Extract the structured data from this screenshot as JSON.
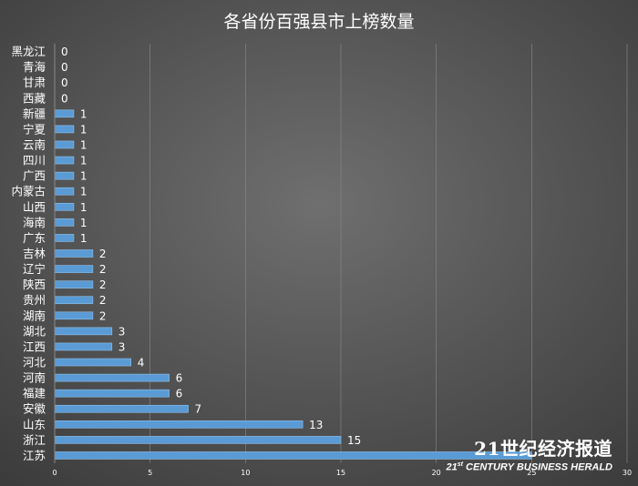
{
  "colors": {
    "background_center": "#6f6f6f",
    "background_edge": "#3c3c3c",
    "bar": "#5b9bd5",
    "bar_edge": "#8fc0ea",
    "text": "#ffffff",
    "grid": "#8a8a8a"
  },
  "watermark": {
    "line1": "21世纪经济报道",
    "line2_prefix": "21",
    "line2_sup": "st",
    "line2_rest": " CENTURY BUSINESS HERALD"
  },
  "chart_data": {
    "type": "bar",
    "orientation": "horizontal",
    "title": "各省份百强县市上榜数量",
    "categories": [
      "黑龙江",
      "青海",
      "甘肃",
      "西藏",
      "新疆",
      "宁夏",
      "云南",
      "四川",
      "广西",
      "内蒙古",
      "山西",
      "海南",
      "广东",
      "吉林",
      "辽宁",
      "陕西",
      "贵州",
      "湖南",
      "湖北",
      "江西",
      "河北",
      "河南",
      "福建",
      "安徽",
      "山东",
      "浙江",
      "江苏"
    ],
    "values": [
      0,
      0,
      0,
      0,
      1,
      1,
      1,
      1,
      1,
      1,
      1,
      1,
      1,
      2,
      2,
      2,
      2,
      2,
      3,
      3,
      4,
      6,
      6,
      7,
      13,
      15,
      25
    ],
    "data_labels": [
      "0",
      "0",
      "0",
      "0",
      "1",
      "1",
      "1",
      "1",
      "1",
      "1",
      "1",
      "1",
      "1",
      "2",
      "2",
      "2",
      "2",
      "2",
      "3",
      "3",
      "4",
      "6",
      "6",
      "7",
      "13",
      "15",
      ""
    ],
    "xlim": [
      0,
      30
    ],
    "xticks": [
      "0",
      "5",
      "10",
      "15",
      "20",
      "25",
      "30"
    ],
    "grid": "vertical",
    "legend": "none"
  }
}
